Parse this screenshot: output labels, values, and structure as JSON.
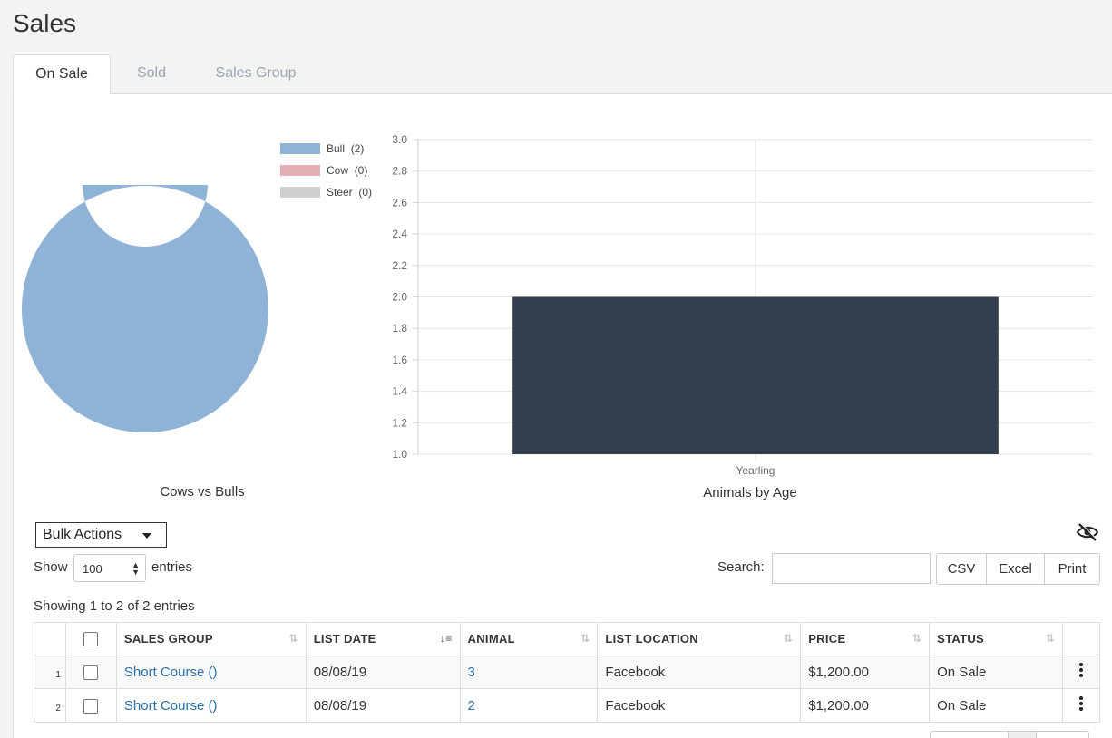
{
  "page": {
    "title": "Sales"
  },
  "tabs": [
    {
      "label": "On Sale",
      "active": true
    },
    {
      "label": "Sold",
      "active": false
    },
    {
      "label": "Sales Group",
      "active": false
    }
  ],
  "charts": {
    "donut_caption": "Cows vs Bulls",
    "bar_caption": "Animals by Age",
    "legend": [
      {
        "label": "Bull",
        "count": "(2)",
        "color": "#8fb3d6"
      },
      {
        "label": "Cow",
        "count": "(0)",
        "color": "#e3aeb4"
      },
      {
        "label": "Steer",
        "count": "(0)",
        "color": "#cfcfcf"
      }
    ]
  },
  "chart_data": [
    {
      "type": "pie",
      "title": "Cows vs Bulls",
      "donut": true,
      "categories": [
        "Bull",
        "Cow",
        "Steer"
      ],
      "values": [
        2,
        0,
        0
      ],
      "colors": [
        "#8fb3d6",
        "#e3aeb4",
        "#cfcfcf"
      ],
      "legend_position": "top-right"
    },
    {
      "type": "bar",
      "title": "Animals by Age",
      "categories": [
        "Yearling"
      ],
      "values": [
        2
      ],
      "ylim": [
        1,
        3
      ],
      "yticks": [
        1.0,
        1.2,
        1.4,
        1.6,
        1.8,
        2.0,
        2.2,
        2.4,
        2.6,
        2.8,
        3.0
      ],
      "grid": true,
      "color": "#343f4d"
    }
  ],
  "controls": {
    "bulk_actions": "Bulk Actions",
    "show_label": "Show",
    "show_value": "100",
    "entries_label": "entries",
    "search_label": "Search:",
    "search_value": "",
    "buttons": [
      "CSV",
      "Excel",
      "Print"
    ],
    "showing": "Showing 1 to 2 of 2 entries"
  },
  "table": {
    "columns": [
      "SALES GROUP",
      "LIST DATE",
      "ANIMAL",
      "LIST LOCATION",
      "PRICE",
      "STATUS"
    ],
    "rows": [
      {
        "index": "1",
        "sales_group": "Short Course ()",
        "list_date": "08/08/19",
        "animal": "3",
        "list_location": "Facebook",
        "price": "$1,200.00",
        "status": "On Sale"
      },
      {
        "index": "2",
        "sales_group": "Short Course ()",
        "list_date": "08/08/19",
        "animal": "2",
        "list_location": "Facebook",
        "price": "$1,200.00",
        "status": "On Sale"
      }
    ]
  }
}
